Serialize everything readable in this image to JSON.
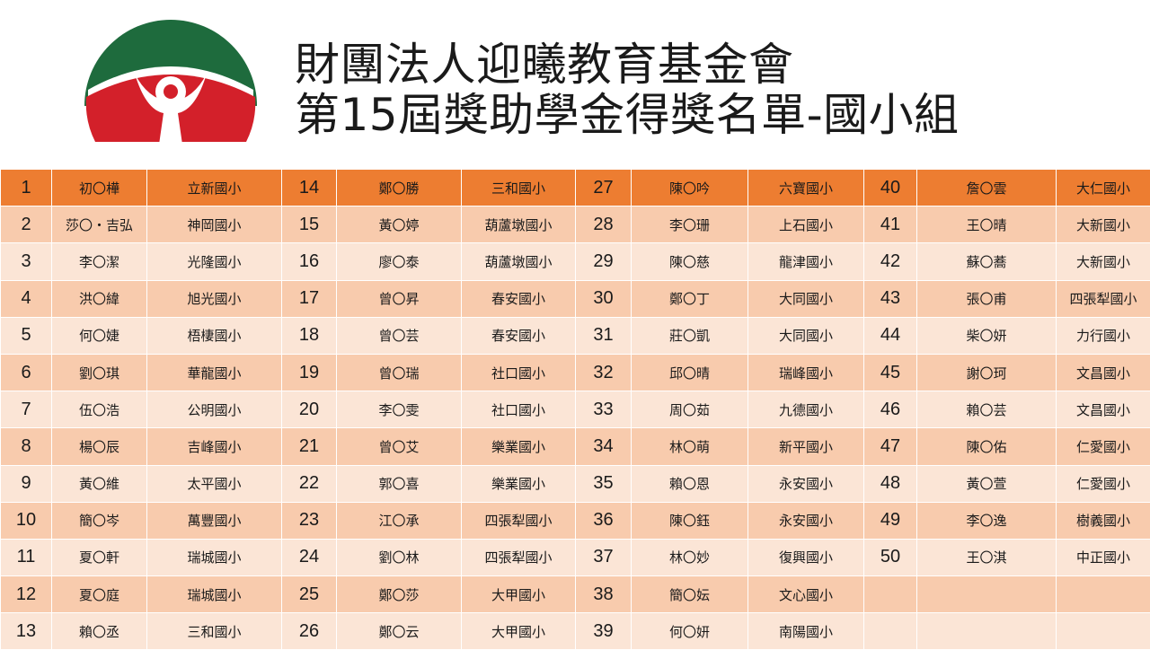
{
  "header": {
    "org_title": "財團法人迎曦教育基金會",
    "list_title": "第15屆獎助學金得獎名單-國小組",
    "logo_icon": "foundation-logo-icon"
  },
  "colors": {
    "logo_green": "#1e6b3d",
    "logo_red": "#d3202a",
    "highlight_row": "#ed7d31",
    "row_odd": "#f8cbad",
    "row_even": "#fbe5d6"
  },
  "rows": [
    [
      {
        "no": "1",
        "name": "初〇樺",
        "school": "立新國小"
      },
      {
        "no": "14",
        "name": "鄭〇勝",
        "school": "三和國小"
      },
      {
        "no": "27",
        "name": "陳〇吟",
        "school": "六寶國小"
      },
      {
        "no": "40",
        "name": "詹〇雲",
        "school": "大仁國小"
      }
    ],
    [
      {
        "no": "2",
        "name": "莎〇・吉弘",
        "school": "神岡國小"
      },
      {
        "no": "15",
        "name": "黃〇婷",
        "school": "葫蘆墩國小"
      },
      {
        "no": "28",
        "name": "李〇珊",
        "school": "上石國小"
      },
      {
        "no": "41",
        "name": "王〇晴",
        "school": "大新國小"
      }
    ],
    [
      {
        "no": "3",
        "name": "李〇潔",
        "school": "光隆國小"
      },
      {
        "no": "16",
        "name": "廖〇泰",
        "school": "葫蘆墩國小"
      },
      {
        "no": "29",
        "name": "陳〇慈",
        "school": "龍津國小"
      },
      {
        "no": "42",
        "name": "蘇〇蕎",
        "school": "大新國小"
      }
    ],
    [
      {
        "no": "4",
        "name": "洪〇緯",
        "school": "旭光國小"
      },
      {
        "no": "17",
        "name": "曾〇昇",
        "school": "春安國小"
      },
      {
        "no": "30",
        "name": "鄭〇丁",
        "school": "大同國小"
      },
      {
        "no": "43",
        "name": "張〇甫",
        "school": "四張犁國小"
      }
    ],
    [
      {
        "no": "5",
        "name": "何〇婕",
        "school": "梧棲國小"
      },
      {
        "no": "18",
        "name": "曾〇芸",
        "school": "春安國小"
      },
      {
        "no": "31",
        "name": "莊〇凱",
        "school": "大同國小"
      },
      {
        "no": "44",
        "name": "柴〇妍",
        "school": "力行國小"
      }
    ],
    [
      {
        "no": "6",
        "name": "劉〇琪",
        "school": "華龍國小"
      },
      {
        "no": "19",
        "name": "曾〇瑞",
        "school": "社口國小"
      },
      {
        "no": "32",
        "name": "邱〇晴",
        "school": "瑞峰國小"
      },
      {
        "no": "45",
        "name": "謝〇珂",
        "school": "文昌國小"
      }
    ],
    [
      {
        "no": "7",
        "name": "伍〇浩",
        "school": "公明國小"
      },
      {
        "no": "20",
        "name": "李〇雯",
        "school": "社口國小"
      },
      {
        "no": "33",
        "name": "周〇茹",
        "school": "九德國小"
      },
      {
        "no": "46",
        "name": "賴〇芸",
        "school": "文昌國小"
      }
    ],
    [
      {
        "no": "8",
        "name": "楊〇辰",
        "school": "吉峰國小"
      },
      {
        "no": "21",
        "name": "曾〇艾",
        "school": "樂業國小"
      },
      {
        "no": "34",
        "name": "林〇萌",
        "school": "新平國小"
      },
      {
        "no": "47",
        "name": "陳〇佑",
        "school": "仁愛國小"
      }
    ],
    [
      {
        "no": "9",
        "name": "黃〇維",
        "school": "太平國小"
      },
      {
        "no": "22",
        "name": "郭〇喜",
        "school": "樂業國小"
      },
      {
        "no": "35",
        "name": "賴〇恩",
        "school": "永安國小"
      },
      {
        "no": "48",
        "name": "黃〇萱",
        "school": "仁愛國小"
      }
    ],
    [
      {
        "no": "10",
        "name": "簡〇岑",
        "school": "萬豐國小"
      },
      {
        "no": "23",
        "name": "江〇承",
        "school": "四張犁國小"
      },
      {
        "no": "36",
        "name": "陳〇鈺",
        "school": "永安國小"
      },
      {
        "no": "49",
        "name": "李〇逸",
        "school": "樹義國小"
      }
    ],
    [
      {
        "no": "11",
        "name": "夏〇軒",
        "school": "瑞城國小"
      },
      {
        "no": "24",
        "name": "劉〇林",
        "school": "四張犁國小"
      },
      {
        "no": "37",
        "name": "林〇妙",
        "school": "復興國小"
      },
      {
        "no": "50",
        "name": "王〇淇",
        "school": "中正國小"
      }
    ],
    [
      {
        "no": "12",
        "name": "夏〇庭",
        "school": "瑞城國小"
      },
      {
        "no": "25",
        "name": "鄭〇莎",
        "school": "大甲國小"
      },
      {
        "no": "38",
        "name": "簡〇妘",
        "school": "文心國小"
      },
      {
        "no": "",
        "name": "",
        "school": ""
      }
    ],
    [
      {
        "no": "13",
        "name": "賴〇丞",
        "school": "三和國小"
      },
      {
        "no": "26",
        "name": "鄭〇云",
        "school": "大甲國小"
      },
      {
        "no": "39",
        "name": "何〇妍",
        "school": "南陽國小"
      },
      {
        "no": "",
        "name": "",
        "school": ""
      }
    ]
  ]
}
